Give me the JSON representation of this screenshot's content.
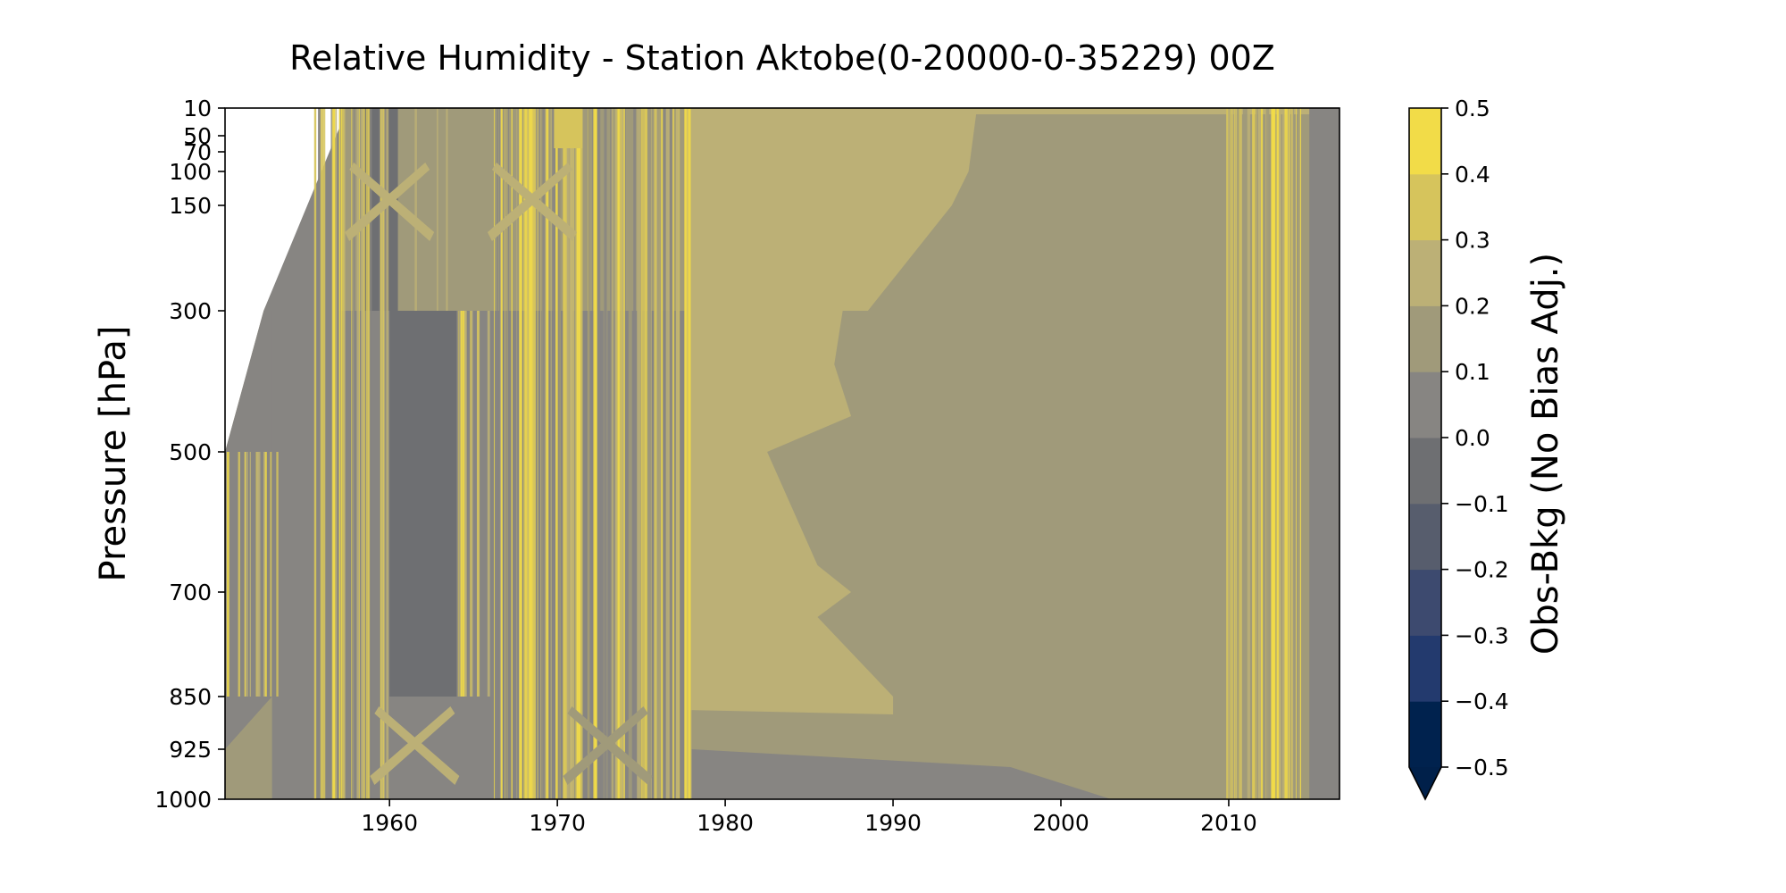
{
  "chart_data": {
    "type": "heatmap",
    "subtype": "filled-contour",
    "title": "Relative Humidity - Station Aktobe(0-20000-0-35229) 00Z",
    "xlabel": "",
    "ylabel": "Pressure [hPa]",
    "colorbar_label": "Obs-Bkg (No Bias Adj.)",
    "x_ticks": [
      "1960",
      "1970",
      "1980",
      "1990",
      "2000",
      "2010"
    ],
    "x_tick_values": [
      1960,
      1970,
      1980,
      1990,
      2000,
      2010
    ],
    "xlim": [
      1950.2,
      2016.6
    ],
    "y_ticks": [
      "10",
      "50",
      "70",
      "100",
      "150",
      "300",
      "500",
      "700",
      "850",
      "925",
      "1000"
    ],
    "y_tick_values": [
      10,
      50,
      70,
      100,
      150,
      300,
      500,
      700,
      850,
      925,
      1000
    ],
    "ylim": [
      1000,
      10
    ],
    "y_scale": "category-spaced (inverted, surface at bottom)",
    "colorbar_ticks": [
      "0.5",
      "0.4",
      "0.3",
      "0.2",
      "0.1",
      "0.0",
      "−0.1",
      "−0.2",
      "−0.3",
      "−0.4",
      "−0.5"
    ],
    "colorbar_levels": [
      -0.5,
      -0.4,
      -0.3,
      -0.2,
      -0.1,
      0.0,
      0.1,
      0.2,
      0.3,
      0.4,
      0.5
    ],
    "colorbar_extend": "min",
    "colormap": "cividis",
    "colorbar_colors": {
      "-0.5": "#00224e",
      "-0.4": "#233a6e",
      "-0.3": "#3d4a6f",
      "-0.2": "#575d6d",
      "-0.1": "#6e6f72",
      "0.0": "#878582",
      "0.1": "#a09a7a",
      "0.2": "#bcb076",
      "0.3": "#d6c45c",
      "0.4": "#f2dc48",
      "extend_below": "#00204a"
    },
    "regions": [
      {
        "x": [
          1950.2,
          1978
        ],
        "y": [
          10,
          1000
        ],
        "value": 0.0,
        "pattern": "mixed stripes"
      },
      {
        "x": [
          1960,
          1964
        ],
        "y": [
          300,
          850
        ],
        "value": -0.1
      },
      {
        "x": [
          1978,
          1995
        ],
        "y": [
          10,
          850
        ],
        "value": 0.2
      },
      {
        "x": [
          1983,
          2016.6
        ],
        "y": [
          10,
          1000
        ],
        "value": 0.1
      },
      {
        "x": [
          2010,
          2014
        ],
        "y": [
          10,
          1000
        ],
        "value": 0.4,
        "pattern": "vertical stripes"
      },
      {
        "x": [
          2014,
          2016.6
        ],
        "y": [
          10,
          1000
        ],
        "value": 0.0
      }
    ]
  }
}
